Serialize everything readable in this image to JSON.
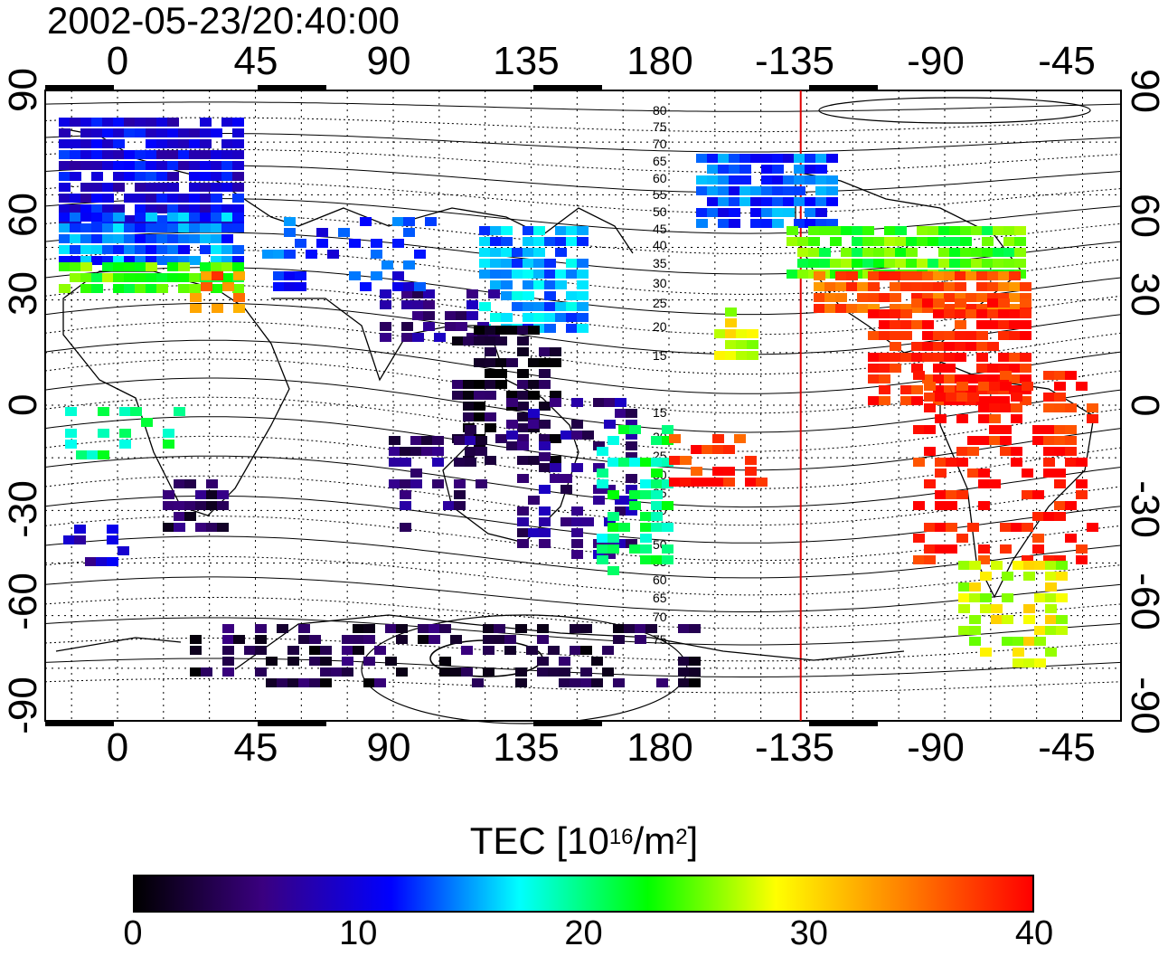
{
  "title": "2002-05-23/20:40:00",
  "map": {
    "lon_ticks_top": [
      "0",
      "45",
      "90",
      "135",
      "180",
      "-135",
      "-90",
      "-45"
    ],
    "lon_ticks_bottom": [
      "0",
      "45",
      "90",
      "135",
      "180",
      "-135",
      "-90",
      "-45"
    ],
    "lat_ticks_left": [
      "90",
      "60",
      "30",
      "0",
      "-30",
      "-60",
      "-90"
    ],
    "lat_ticks_right": [
      "90",
      "60",
      "30",
      "0",
      "-30",
      "-60",
      "-90"
    ],
    "contour_labels": [
      "80",
      "75",
      "70",
      "65",
      "60",
      "55",
      "50",
      "45",
      "40",
      "35",
      "30",
      "25",
      "20",
      "15",
      "15",
      "20",
      "25",
      "30",
      "35",
      "40",
      "45",
      "50",
      "55",
      "60",
      "65",
      "70",
      "75"
    ],
    "terminator_longitude": -137,
    "terminator_color": "#e00000"
  },
  "colorbar": {
    "title_prefix": "TEC  [10",
    "title_sup1": "16",
    "title_mid": "/m",
    "title_sup2": "2",
    "title_suffix": "]",
    "tick_labels": [
      "0",
      "10",
      "20",
      "30",
      "40"
    ],
    "min": 0,
    "max": 40,
    "colors": [
      "#000000",
      "#3a0080",
      "#0000ff",
      "#00ffff",
      "#00ff00",
      "#ffff00",
      "#ff8000",
      "#ff0000"
    ]
  }
}
